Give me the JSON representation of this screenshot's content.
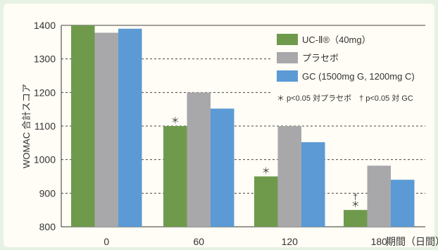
{
  "chart_data": {
    "type": "bar",
    "title": "",
    "xlabel": "期間（日間）",
    "ylabel": "WOMAC 合計スコア",
    "categories": [
      "0",
      "60",
      "120",
      "180"
    ],
    "ylim": [
      800,
      1400
    ],
    "yticks": [
      "800",
      "900",
      "1000",
      "1100",
      "1200",
      "1300",
      "1400"
    ],
    "grid": true,
    "legend_position": "top-right",
    "series": [
      {
        "name": "UC-Ⅱ®（40mg）",
        "color": "#6f9a4c",
        "values": [
          1400,
          1100,
          950,
          850
        ]
      },
      {
        "name": "プラセボ",
        "color": "#a8a8ab",
        "values": [
          1378,
          1200,
          1100,
          982
        ]
      },
      {
        "name": "GC (1500mg G, 1200mg C)",
        "color": "#5b9ad5",
        "values": [
          1390,
          1152,
          1052,
          940
        ]
      }
    ],
    "annotations": [
      {
        "category": "60",
        "series": 0,
        "text": "＊"
      },
      {
        "category": "120",
        "series": 0,
        "text": "＊"
      },
      {
        "category": "180",
        "series": 0,
        "text": "†"
      },
      {
        "category": "180",
        "series": 0,
        "text": "＊"
      }
    ],
    "footnote": "＊ p<0.05 対プラセボ　† p<0.05 対 GC"
  },
  "colors": {
    "background": "#e6f2e3",
    "panel": "#fffdf5",
    "axis": "#333333",
    "grid": "#444444"
  }
}
